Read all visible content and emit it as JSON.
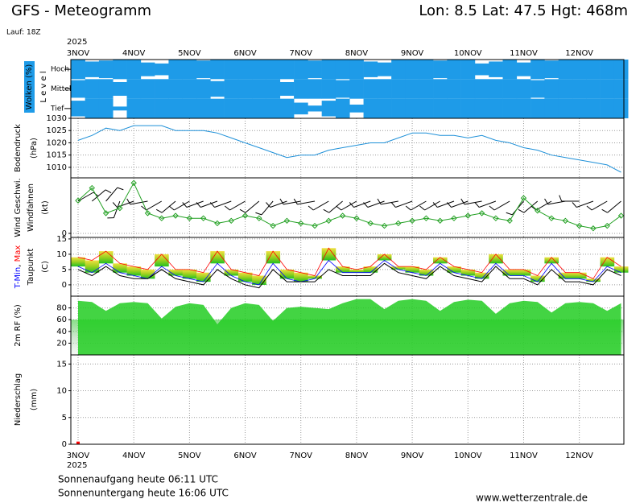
{
  "header": {
    "title": "GFS - Meteogramm",
    "location": "Lon: 8.5 Lat: 47.5 Hgt: 468m",
    "run": "Lauf: 18Z"
  },
  "time_axis": {
    "year": "2025",
    "x": [
      0,
      0.25,
      0.5,
      0.75,
      1,
      1.25,
      1.5,
      1.75,
      2,
      2.25,
      2.5,
      2.75,
      3,
      3.25,
      3.5,
      3.75,
      4,
      4.25,
      4.5,
      4.75,
      5,
      5.25,
      5.5,
      5.75,
      6,
      6.25,
      6.5,
      6.75,
      7,
      7.25,
      7.5,
      7.75,
      8,
      8.25,
      8.5,
      8.75,
      9,
      9.25,
      9.5,
      9.75
    ],
    "xlim": [
      -0.13,
      9.8
    ],
    "xticks": [
      {
        "value": 0,
        "label": "3NOV"
      },
      {
        "value": 1,
        "label": "4NOV"
      },
      {
        "value": 2,
        "label": "5NOV"
      },
      {
        "value": 3,
        "label": "6NOV"
      },
      {
        "value": 4,
        "label": "7NOV"
      },
      {
        "value": 5,
        "label": "8NOV"
      },
      {
        "value": 6,
        "label": "9NOV"
      },
      {
        "value": 7,
        "label": "10NOV"
      },
      {
        "value": 8,
        "label": "11NOV"
      },
      {
        "value": 9,
        "label": "12NOV"
      }
    ]
  },
  "chart_data": [
    {
      "type": "cloudlayers",
      "title": "Wolken (%)",
      "ylabel": "L e v e l",
      "ylim": [
        0,
        100
      ],
      "series": [
        {
          "name": "Hoch",
          "color": "#1e9be8",
          "values": [
            100,
            80,
            90,
            100,
            100,
            70,
            60,
            100,
            100,
            90,
            100,
            100,
            100,
            100,
            100,
            100,
            100,
            90,
            100,
            100,
            100,
            80,
            70,
            100,
            100,
            100,
            90,
            100,
            100,
            60,
            80,
            100,
            70,
            100,
            90,
            100,
            100,
            100,
            100,
            100
          ]
        },
        {
          "name": "Mittel",
          "color": "#1e9be8",
          "values": [
            90,
            100,
            100,
            70,
            100,
            100,
            100,
            100,
            100,
            100,
            80,
            100,
            100,
            100,
            100,
            70,
            100,
            100,
            100,
            90,
            100,
            100,
            100,
            100,
            100,
            100,
            100,
            100,
            100,
            100,
            100,
            100,
            100,
            90,
            100,
            100,
            100,
            100,
            100,
            100
          ]
        },
        {
          "name": "Tief",
          "color": "#1e9be8",
          "values": [
            80,
            100,
            100,
            20,
            100,
            100,
            100,
            100,
            100,
            100,
            100,
            100,
            100,
            100,
            100,
            100,
            60,
            30,
            80,
            100,
            40,
            100,
            100,
            100,
            100,
            100,
            100,
            100,
            100,
            100,
            100,
            100,
            100,
            100,
            100,
            100,
            100,
            100,
            100,
            100
          ]
        }
      ]
    },
    {
      "type": "line",
      "ylabel": [
        "Bodendruck",
        "(hPa)"
      ],
      "ylim": [
        1005.7,
        1030
      ],
      "yticks": [
        1010,
        1015,
        1020,
        1025,
        1030
      ],
      "grid": true,
      "series": [
        {
          "name": "Bodendruck",
          "color": "#1e90d8",
          "values": [
            1021,
            1023,
            1026,
            1025,
            1027,
            1027,
            1027,
            1025,
            1025,
            1025,
            1024,
            1022,
            1020,
            1018,
            1016,
            1014,
            1015,
            1015,
            1017,
            1018,
            1019,
            1020,
            1020,
            1022,
            1024,
            1024,
            1023,
            1023,
            1022,
            1023,
            1021,
            1020,
            1018,
            1017,
            1015,
            1014,
            1013,
            1012,
            1011,
            1008
          ]
        }
      ]
    },
    {
      "type": "wind",
      "ylabel": "(kt)",
      "ylim": [
        -1.6,
        22
      ],
      "yticks": [
        0
      ],
      "grid": true,
      "series": [
        {
          "name": "Wind Geschwi.",
          "color": "#22a022",
          "values": [
            13,
            18,
            8,
            10,
            20,
            8,
            6,
            7,
            6,
            6,
            4,
            5,
            7,
            6,
            3,
            5,
            4,
            3,
            5,
            7,
            6,
            4,
            3,
            4,
            5,
            6,
            5,
            6,
            7,
            8,
            6,
            5,
            14,
            9,
            6,
            5,
            3,
            2,
            3,
            7
          ]
        },
        {
          "name": "Windfahnen",
          "color": "#000000",
          "values": [
            60,
            50,
            40,
            200,
            250,
            260,
            240,
            230,
            240,
            250,
            250,
            250,
            240,
            230,
            220,
            250,
            260,
            260,
            240,
            230,
            240,
            250,
            250,
            260,
            250,
            240,
            240,
            250,
            250,
            260,
            250,
            240,
            220,
            230,
            240,
            260,
            270,
            250,
            240,
            230
          ]
        }
      ]
    },
    {
      "type": "temperature",
      "ylabel": "(C)",
      "ylabel_separator": ", ",
      "ylim": [
        -3.7,
        15.5
      ],
      "yticks": [
        0,
        5,
        10,
        15
      ],
      "grid": true,
      "series": [
        {
          "name": "T-Min",
          "color": "#0000ff",
          "values": [
            6,
            4,
            7,
            4,
            3,
            2,
            6,
            3,
            2,
            1,
            7,
            3,
            1,
            0,
            7,
            2,
            1,
            2,
            8,
            4,
            4,
            4,
            8,
            5,
            4,
            3,
            7,
            4,
            3,
            2,
            7,
            3,
            3,
            1,
            7,
            2,
            2,
            1,
            6,
            4
          ]
        },
        {
          "name": "Max",
          "color": "#ff0000",
          "values": [
            9,
            8,
            11,
            7,
            6,
            5,
            10,
            5,
            5,
            4,
            11,
            5,
            4,
            3,
            11,
            5,
            4,
            3,
            12,
            6,
            5,
            6,
            10,
            6,
            6,
            5,
            9,
            6,
            5,
            4,
            10,
            5,
            5,
            3,
            9,
            4,
            4,
            2,
            9,
            6
          ]
        },
        {
          "name": "Taupunkt",
          "color": "#000000",
          "values": [
            5,
            3,
            6,
            3,
            2,
            2,
            5,
            2,
            1,
            0,
            5,
            2,
            0,
            -1,
            5,
            1,
            1,
            1,
            5,
            3,
            3,
            3,
            7,
            4,
            3,
            2,
            6,
            3,
            2,
            1,
            6,
            2,
            2,
            0,
            5,
            1,
            1,
            0,
            5,
            3
          ]
        }
      ]
    },
    {
      "type": "area",
      "ylabel": "2m RF (%)",
      "ylim": [
        0,
        100
      ],
      "yticks": [
        20,
        40,
        60,
        80
      ],
      "grid": true,
      "series": [
        {
          "name": "2m RF (%)",
          "color": "#22cc22",
          "values": [
            92,
            90,
            75,
            88,
            90,
            88,
            62,
            82,
            88,
            85,
            52,
            80,
            88,
            85,
            58,
            80,
            82,
            80,
            78,
            88,
            95,
            95,
            78,
            92,
            95,
            92,
            75,
            90,
            94,
            92,
            70,
            88,
            92,
            90,
            72,
            88,
            90,
            88,
            75,
            88
          ]
        }
      ]
    },
    {
      "type": "bar",
      "ylabel": [
        "Niederschlag",
        "(mm)"
      ],
      "ylim": [
        0,
        16.7
      ],
      "yticks": [
        0,
        5,
        10,
        15
      ],
      "grid": true,
      "series": [
        {
          "name": "Niederschlag",
          "color": "#ff0000",
          "values": [
            0.5,
            0,
            0,
            0,
            0,
            0,
            0,
            0,
            0,
            0,
            0,
            0,
            0,
            0,
            0,
            0,
            0,
            0,
            0,
            0,
            0,
            0,
            0,
            0,
            0,
            0,
            0,
            0,
            0,
            0,
            0,
            0,
            0,
            0,
            0,
            0,
            0,
            0,
            0,
            0
          ]
        }
      ]
    }
  ],
  "footer": {
    "sunrise": "Sonnenaufgang heute 06:11 UTC",
    "sunset": "Sonnenuntergang heute 16:06 UTC",
    "source": "www.wetterzentrale.de"
  }
}
